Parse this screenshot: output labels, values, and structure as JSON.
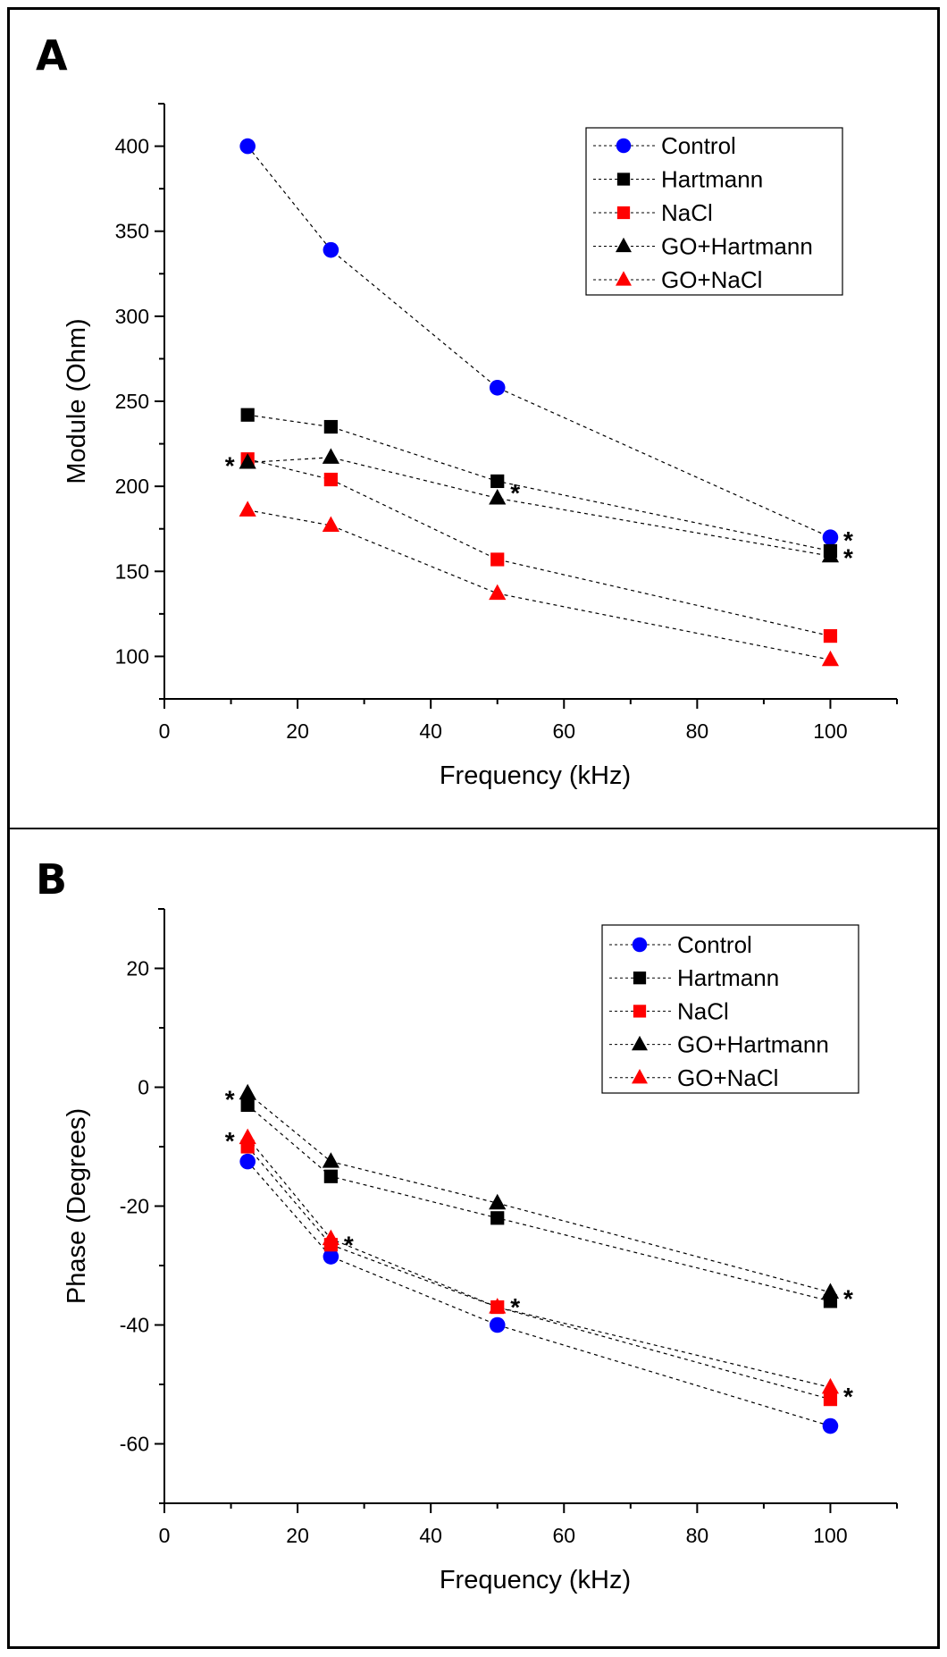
{
  "colors": {
    "Control": "#0000ff",
    "Hartmann": "#000000",
    "NaCl": "#ff0000",
    "GO+Hartmann": "#000000",
    "GO+NaCl": "#ff0000"
  },
  "chart_data": [
    {
      "type": "line",
      "panel": "A",
      "title": "",
      "xlabel": "Frequency (kHz)",
      "ylabel": "Module (Ohm)",
      "xlim": [
        0,
        110
      ],
      "ylim": [
        75,
        425
      ],
      "xticks": [
        0,
        20,
        40,
        60,
        80,
        100
      ],
      "xticks_minor": [
        10,
        30,
        50,
        70,
        90,
        110
      ],
      "yticks": [
        100,
        150,
        200,
        250,
        300,
        350,
        400
      ],
      "yticks_minor": [
        125,
        175,
        225,
        275,
        325,
        375,
        425
      ],
      "grid": false,
      "legend_position": "top-right",
      "x": [
        12.5,
        25,
        50,
        100
      ],
      "series": [
        {
          "name": "Control",
          "marker": "circle",
          "values": [
            400,
            339,
            258,
            170
          ]
        },
        {
          "name": "Hartmann",
          "marker": "square",
          "values": [
            242,
            235,
            203,
            162
          ]
        },
        {
          "name": "NaCl",
          "marker": "square",
          "values": [
            216,
            204,
            157,
            112
          ]
        },
        {
          "name": "GO+Hartmann",
          "marker": "triangle",
          "values": [
            214,
            217,
            193,
            159
          ]
        },
        {
          "name": "GO+NaCl",
          "marker": "triangle",
          "values": [
            186,
            177,
            137,
            98
          ]
        }
      ],
      "annotations": [
        {
          "text": "*",
          "x": 12.5,
          "y": 214,
          "side": "left"
        },
        {
          "text": "*",
          "x": 50,
          "y": 198,
          "side": "right"
        },
        {
          "text": "*",
          "x": 100,
          "y": 170,
          "side": "right"
        },
        {
          "text": "*",
          "x": 100,
          "y": 160,
          "side": "right"
        }
      ]
    },
    {
      "type": "line",
      "panel": "B",
      "title": "",
      "xlabel": "Frequency (kHz)",
      "ylabel": "Phase (Degrees)",
      "xlim": [
        0,
        110
      ],
      "ylim": [
        -70,
        30
      ],
      "xticks": [
        0,
        20,
        40,
        60,
        80,
        100
      ],
      "xticks_minor": [
        10,
        30,
        50,
        70,
        90,
        110
      ],
      "yticks": [
        -60,
        -40,
        -20,
        0,
        20
      ],
      "yticks_minor": [
        -70,
        -50,
        -30,
        -10,
        10,
        30
      ],
      "grid": false,
      "legend_position": "top-right",
      "x": [
        12.5,
        25,
        50,
        100
      ],
      "series": [
        {
          "name": "Control",
          "marker": "circle",
          "values": [
            -12.5,
            -28.5,
            -40,
            -57
          ]
        },
        {
          "name": "Hartmann",
          "marker": "square",
          "values": [
            -3,
            -15,
            -22,
            -36
          ]
        },
        {
          "name": "NaCl",
          "marker": "square",
          "values": [
            -10,
            -26.5,
            -37,
            -52.5
          ]
        },
        {
          "name": "GO+Hartmann",
          "marker": "triangle",
          "values": [
            -1,
            -12.5,
            -19.5,
            -34.5
          ]
        },
        {
          "name": "GO+NaCl",
          "marker": "triangle",
          "values": [
            -8.5,
            -25.5,
            -37,
            -50.5
          ]
        }
      ],
      "annotations": [
        {
          "text": "*",
          "x": 12.5,
          "y": -1.5,
          "side": "left"
        },
        {
          "text": "*",
          "x": 12.5,
          "y": -8.5,
          "side": "left"
        },
        {
          "text": "*",
          "x": 25,
          "y": -26,
          "side": "right"
        },
        {
          "text": "*",
          "x": 50,
          "y": -36.5,
          "side": "right"
        },
        {
          "text": "*",
          "x": 100,
          "y": -35,
          "side": "right"
        },
        {
          "text": "*",
          "x": 100,
          "y": -51.5,
          "side": "right"
        }
      ]
    }
  ]
}
